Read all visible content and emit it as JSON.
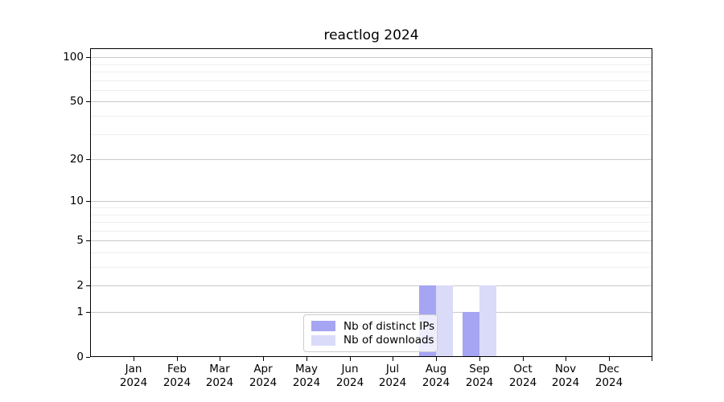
{
  "chart_data": {
    "type": "bar",
    "title": "reactlog 2024",
    "categories": [
      "Jan",
      "Feb",
      "Mar",
      "Apr",
      "May",
      "Jun",
      "Jul",
      "Aug",
      "Sep",
      "Oct",
      "Nov",
      "Dec"
    ],
    "year_label": "2024",
    "series": [
      {
        "name": "Nb of distinct IPs",
        "color": "#a5a5f3",
        "values": [
          0,
          0,
          0,
          0,
          0,
          0,
          0,
          2,
          1,
          0,
          0,
          0
        ]
      },
      {
        "name": "Nb of downloads",
        "color": "#dadaf9",
        "values": [
          0,
          0,
          0,
          0,
          0,
          0,
          0,
          2,
          2,
          0,
          0,
          0
        ]
      }
    ],
    "yscale": "log1p",
    "ylim": [
      0,
      115
    ],
    "yticks": [
      0,
      1,
      2,
      5,
      10,
      20,
      50,
      100
    ],
    "yticks_minor": [
      3,
      4,
      6,
      7,
      8,
      9,
      30,
      40,
      60,
      70,
      80,
      90
    ],
    "xlabel": "",
    "ylabel": "",
    "grid": "horizontal",
    "legend_position": "lower center"
  },
  "styles": {
    "axis_color": "#000000",
    "text_color": "#000000",
    "grid_major_color": "#c9c9c9",
    "grid_minor_color": "#efefef",
    "legend_border_color": "#cccccc",
    "background": "#ffffff"
  }
}
